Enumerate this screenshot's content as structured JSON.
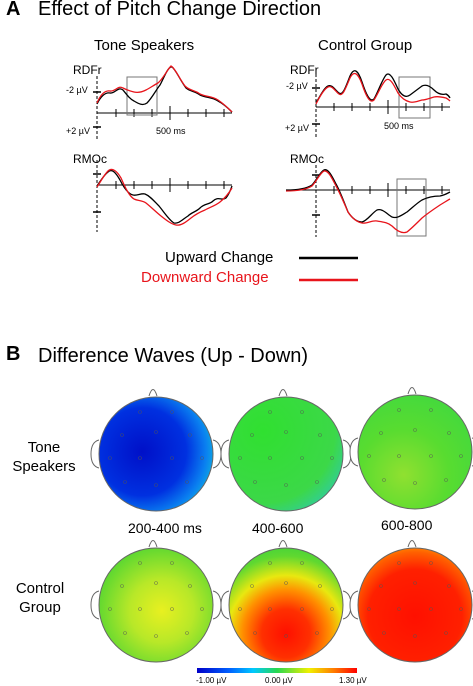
{
  "panel_a": {
    "letter": "A",
    "title": "Effect of Pitch Change Direction",
    "groups": [
      {
        "label": "Tone Speakers",
        "top_channel": "RDFr",
        "bottom_channel": "RMOc",
        "neg_label": "-2 µV",
        "pos_label": "+2 µV",
        "time_label": "500 ms"
      },
      {
        "label": "Control Group",
        "top_channel": "RDFr",
        "bottom_channel": "RMOc",
        "neg_label": "-2 µV",
        "pos_label": "+2 µV",
        "time_label": "500 ms"
      }
    ],
    "legend": [
      {
        "label": "Upward Change",
        "color": "#000000"
      },
      {
        "label": "Downward Change",
        "color": "#e8141b"
      }
    ]
  },
  "panel_b": {
    "letter": "B",
    "title": "Difference Waves (Up - Down)",
    "rows": [
      {
        "label_line1": "Tone",
        "label_line2": "Speakers"
      },
      {
        "label_line1": "Control",
        "label_line2": "Group"
      }
    ],
    "time_windows": [
      "200-400 ms",
      "400-600",
      "600-800"
    ],
    "colorbar": {
      "min_label": "-1.00 µV",
      "mid_label": "0.00 µV",
      "max_label": "1.30 µV",
      "colors": [
        "#0000c8",
        "#00b4ff",
        "#28d850",
        "#f0f000",
        "#ff0000"
      ]
    }
  }
}
